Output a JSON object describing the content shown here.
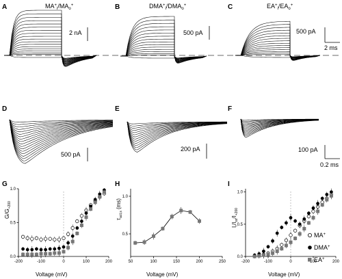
{
  "panels": {
    "A": {
      "label": "A",
      "title_parts": [
        "MA",
        "+",
        "i",
        "/MA",
        "o",
        "+"
      ],
      "scale": "2 nA"
    },
    "B": {
      "label": "B",
      "title_parts": [
        "DMA",
        "+",
        "i",
        "/DMA",
        "o",
        "+"
      ],
      "scale": "500 pA"
    },
    "C": {
      "label": "C",
      "title_parts": [
        "EA",
        "+",
        "i",
        "/EA",
        "o",
        "+"
      ],
      "scale": "500 pA",
      "time": "2 ms"
    },
    "D": {
      "label": "D",
      "scale": "500 pA"
    },
    "E": {
      "label": "E",
      "scale": "200 pA"
    },
    "F": {
      "label": "F",
      "scale": "100 pA",
      "time": "0.2 ms"
    }
  },
  "chart_data": [
    {
      "id": "G",
      "label": "G",
      "type": "scatter",
      "ylabel_parts": [
        "G/G",
        "+200"
      ],
      "xlabel": "Voltage (mV)",
      "xticks": [
        "-200",
        "-100",
        "0",
        "100",
        "200"
      ],
      "yticks": [
        "0.0",
        "0.5",
        "1.0"
      ],
      "xlim": [
        -200,
        200
      ],
      "ylim": [
        0,
        1.0
      ],
      "series": [
        {
          "marker": "open-circle",
          "x": [
            -180,
            -160,
            -140,
            -120,
            -100,
            -80,
            -60,
            -40,
            -20,
            0,
            20,
            40,
            60,
            80,
            100,
            120,
            140,
            160,
            180
          ],
          "y": [
            0.29,
            0.27,
            0.26,
            0.27,
            0.25,
            0.26,
            0.26,
            0.25,
            0.25,
            0.27,
            0.33,
            0.42,
            0.52,
            0.6,
            0.68,
            0.76,
            0.82,
            0.88,
            0.93
          ]
        },
        {
          "marker": "filled-circle",
          "x": [
            -180,
            -160,
            -140,
            -120,
            -100,
            -80,
            -60,
            -40,
            -20,
            0,
            20,
            40,
            60,
            80,
            100,
            120,
            140,
            160,
            180
          ],
          "y": [
            0.11,
            0.1,
            0.1,
            0.11,
            0.1,
            0.1,
            0.11,
            0.11,
            0.12,
            0.14,
            0.2,
            0.3,
            0.42,
            0.52,
            0.64,
            0.74,
            0.84,
            0.92,
            0.98
          ]
        },
        {
          "marker": "filled-square",
          "x": [
            -180,
            -160,
            -140,
            -120,
            -100,
            -80,
            -60,
            -40,
            -20,
            0,
            20,
            40,
            60,
            80,
            100,
            120,
            140,
            160,
            180
          ],
          "y": [
            0.03,
            0.03,
            0.03,
            0.03,
            0.04,
            0.04,
            0.04,
            0.05,
            0.05,
            0.07,
            0.13,
            0.22,
            0.34,
            0.46,
            0.58,
            0.7,
            0.8,
            0.88,
            0.95
          ]
        }
      ]
    },
    {
      "id": "H",
      "label": "H",
      "type": "scatter",
      "ylabel_parts": [
        "τ",
        "act,s",
        " (ms)"
      ],
      "xlabel": "Voltage (mV)",
      "xticks": [
        "50",
        "100",
        "150",
        "200",
        "250"
      ],
      "yticks": [
        "0.5",
        "1.0"
      ],
      "xlim": [
        50,
        250
      ],
      "ylim": [
        0.2,
        1.1
      ],
      "series": [
        {
          "marker": "filled-square",
          "x": [
            60,
            80,
            100,
            120,
            140,
            160,
            180,
            200
          ],
          "y": [
            0.38,
            0.39,
            0.47,
            0.57,
            0.73,
            0.81,
            0.79,
            0.67
          ]
        }
      ]
    },
    {
      "id": "I",
      "label": "I",
      "type": "scatter",
      "ylabel_parts": [
        "I",
        "r",
        "/I",
        "ss",
        "/I",
        "+200"
      ],
      "xlabel": "Voltage (mV)",
      "xticks": [
        "-200",
        "-100",
        "0",
        "100",
        "200"
      ],
      "yticks": [
        "0.0",
        "0.5",
        "1.0"
      ],
      "xlim": [
        -200,
        200
      ],
      "ylim": [
        0,
        1.05
      ],
      "series": [
        {
          "name": "MA",
          "name_sup": "+",
          "marker": "open-circle",
          "x": [
            -160,
            -140,
            -120,
            -100,
            -80,
            -60,
            -40,
            -20,
            0,
            20,
            40,
            60,
            80,
            100,
            120,
            140,
            160,
            180
          ],
          "y": [
            0.01,
            0.02,
            0.03,
            0.05,
            0.08,
            0.12,
            0.18,
            0.25,
            0.33,
            0.4,
            0.48,
            0.55,
            0.62,
            0.7,
            0.77,
            0.84,
            0.9,
            0.96
          ]
        },
        {
          "name": "DMA",
          "name_sup": "+",
          "marker": "filled-circle",
          "x": [
            -160,
            -140,
            -120,
            -100,
            -80,
            -60,
            -40,
            -20,
            0,
            20,
            40,
            60,
            80,
            100,
            120,
            140,
            160,
            180
          ],
          "y": [
            0.02,
            0.04,
            0.08,
            0.15,
            0.24,
            0.36,
            0.45,
            0.52,
            0.6,
            0.55,
            0.5,
            0.58,
            0.67,
            0.75,
            0.82,
            0.9,
            0.96,
            1.0
          ]
        },
        {
          "name": "EA",
          "name_sup": "+",
          "marker": "filled-square",
          "x": [
            -160,
            -140,
            -120,
            -100,
            -80,
            -60,
            -40,
            -20,
            0,
            20,
            40,
            60,
            80,
            100,
            120,
            140,
            160,
            180
          ],
          "y": [
            0.0,
            0.01,
            0.02,
            0.03,
            0.05,
            0.08,
            0.12,
            0.17,
            0.22,
            0.28,
            0.35,
            0.43,
            0.52,
            0.6,
            0.7,
            0.8,
            0.88,
            0.94
          ]
        }
      ]
    }
  ]
}
